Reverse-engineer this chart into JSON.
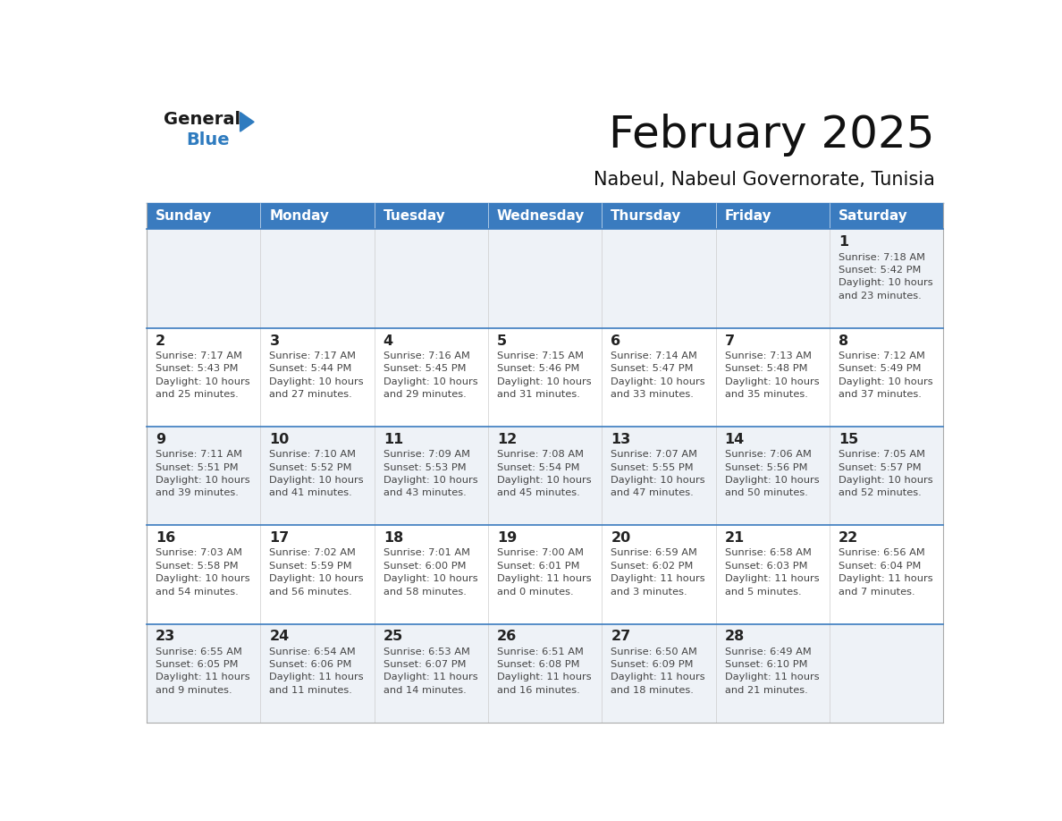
{
  "title": "February 2025",
  "subtitle": "Nabeul, Nabeul Governorate, Tunisia",
  "header_bg": "#3a7bbf",
  "header_text": "#ffffff",
  "day_names": [
    "Sunday",
    "Monday",
    "Tuesday",
    "Wednesday",
    "Thursday",
    "Friday",
    "Saturday"
  ],
  "row_bg_light": "#eef2f7",
  "row_bg_white": "#ffffff",
  "divider_color": "#3a7bbf",
  "cell_text_color": "#444444",
  "day_num_color": "#222222",
  "calendar": [
    [
      {
        "day": null,
        "info": ""
      },
      {
        "day": null,
        "info": ""
      },
      {
        "day": null,
        "info": ""
      },
      {
        "day": null,
        "info": ""
      },
      {
        "day": null,
        "info": ""
      },
      {
        "day": null,
        "info": ""
      },
      {
        "day": 1,
        "info": "Sunrise: 7:18 AM\nSunset: 5:42 PM\nDaylight: 10 hours\nand 23 minutes."
      }
    ],
    [
      {
        "day": 2,
        "info": "Sunrise: 7:17 AM\nSunset: 5:43 PM\nDaylight: 10 hours\nand 25 minutes."
      },
      {
        "day": 3,
        "info": "Sunrise: 7:17 AM\nSunset: 5:44 PM\nDaylight: 10 hours\nand 27 minutes."
      },
      {
        "day": 4,
        "info": "Sunrise: 7:16 AM\nSunset: 5:45 PM\nDaylight: 10 hours\nand 29 minutes."
      },
      {
        "day": 5,
        "info": "Sunrise: 7:15 AM\nSunset: 5:46 PM\nDaylight: 10 hours\nand 31 minutes."
      },
      {
        "day": 6,
        "info": "Sunrise: 7:14 AM\nSunset: 5:47 PM\nDaylight: 10 hours\nand 33 minutes."
      },
      {
        "day": 7,
        "info": "Sunrise: 7:13 AM\nSunset: 5:48 PM\nDaylight: 10 hours\nand 35 minutes."
      },
      {
        "day": 8,
        "info": "Sunrise: 7:12 AM\nSunset: 5:49 PM\nDaylight: 10 hours\nand 37 minutes."
      }
    ],
    [
      {
        "day": 9,
        "info": "Sunrise: 7:11 AM\nSunset: 5:51 PM\nDaylight: 10 hours\nand 39 minutes."
      },
      {
        "day": 10,
        "info": "Sunrise: 7:10 AM\nSunset: 5:52 PM\nDaylight: 10 hours\nand 41 minutes."
      },
      {
        "day": 11,
        "info": "Sunrise: 7:09 AM\nSunset: 5:53 PM\nDaylight: 10 hours\nand 43 minutes."
      },
      {
        "day": 12,
        "info": "Sunrise: 7:08 AM\nSunset: 5:54 PM\nDaylight: 10 hours\nand 45 minutes."
      },
      {
        "day": 13,
        "info": "Sunrise: 7:07 AM\nSunset: 5:55 PM\nDaylight: 10 hours\nand 47 minutes."
      },
      {
        "day": 14,
        "info": "Sunrise: 7:06 AM\nSunset: 5:56 PM\nDaylight: 10 hours\nand 50 minutes."
      },
      {
        "day": 15,
        "info": "Sunrise: 7:05 AM\nSunset: 5:57 PM\nDaylight: 10 hours\nand 52 minutes."
      }
    ],
    [
      {
        "day": 16,
        "info": "Sunrise: 7:03 AM\nSunset: 5:58 PM\nDaylight: 10 hours\nand 54 minutes."
      },
      {
        "day": 17,
        "info": "Sunrise: 7:02 AM\nSunset: 5:59 PM\nDaylight: 10 hours\nand 56 minutes."
      },
      {
        "day": 18,
        "info": "Sunrise: 7:01 AM\nSunset: 6:00 PM\nDaylight: 10 hours\nand 58 minutes."
      },
      {
        "day": 19,
        "info": "Sunrise: 7:00 AM\nSunset: 6:01 PM\nDaylight: 11 hours\nand 0 minutes."
      },
      {
        "day": 20,
        "info": "Sunrise: 6:59 AM\nSunset: 6:02 PM\nDaylight: 11 hours\nand 3 minutes."
      },
      {
        "day": 21,
        "info": "Sunrise: 6:58 AM\nSunset: 6:03 PM\nDaylight: 11 hours\nand 5 minutes."
      },
      {
        "day": 22,
        "info": "Sunrise: 6:56 AM\nSunset: 6:04 PM\nDaylight: 11 hours\nand 7 minutes."
      }
    ],
    [
      {
        "day": 23,
        "info": "Sunrise: 6:55 AM\nSunset: 6:05 PM\nDaylight: 11 hours\nand 9 minutes."
      },
      {
        "day": 24,
        "info": "Sunrise: 6:54 AM\nSunset: 6:06 PM\nDaylight: 11 hours\nand 11 minutes."
      },
      {
        "day": 25,
        "info": "Sunrise: 6:53 AM\nSunset: 6:07 PM\nDaylight: 11 hours\nand 14 minutes."
      },
      {
        "day": 26,
        "info": "Sunrise: 6:51 AM\nSunset: 6:08 PM\nDaylight: 11 hours\nand 16 minutes."
      },
      {
        "day": 27,
        "info": "Sunrise: 6:50 AM\nSunset: 6:09 PM\nDaylight: 11 hours\nand 18 minutes."
      },
      {
        "day": 28,
        "info": "Sunrise: 6:49 AM\nSunset: 6:10 PM\nDaylight: 11 hours\nand 21 minutes."
      },
      {
        "day": null,
        "info": ""
      }
    ]
  ],
  "logo_general_color": "#1a1a1a",
  "logo_blue_color": "#2e7bbf",
  "logo_triangle_color": "#2e7bbf"
}
